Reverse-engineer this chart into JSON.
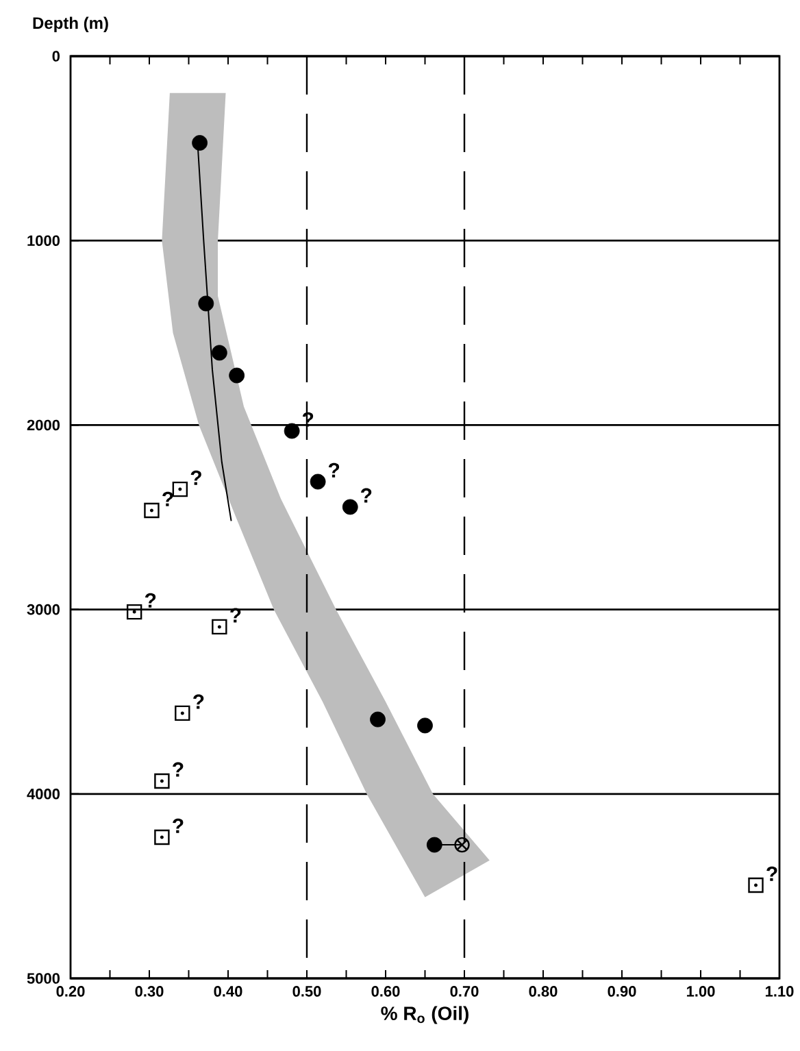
{
  "chart_data": {
    "type": "scatter",
    "xlabel": "% R$_{o}$ (Oil)",
    "ylabel": "Depth (m)",
    "xlim": [
      0.2,
      1.1
    ],
    "ylim": [
      5000,
      0
    ],
    "xticks": [
      {
        "value": 0.2,
        "label": "0.20"
      },
      {
        "value": 0.25,
        "label": null
      },
      {
        "value": 0.3,
        "label": "0.30"
      },
      {
        "value": 0.35,
        "label": null
      },
      {
        "value": 0.4,
        "label": "0.40"
      },
      {
        "value": 0.45,
        "label": null
      },
      {
        "value": 0.5,
        "label": "0.50"
      },
      {
        "value": 0.55,
        "label": null
      },
      {
        "value": 0.6,
        "label": "0.60"
      },
      {
        "value": 0.65,
        "label": null
      },
      {
        "value": 0.7,
        "label": "0.70"
      },
      {
        "value": 0.75,
        "label": null
      },
      {
        "value": 0.8,
        "label": "0.80"
      },
      {
        "value": 0.85,
        "label": null
      },
      {
        "value": 0.9,
        "label": "0.90"
      },
      {
        "value": 0.95,
        "label": null
      },
      {
        "value": 1.0,
        "label": "1.00"
      },
      {
        "value": 1.05,
        "label": null
      },
      {
        "value": 1.1,
        "label": "1.10"
      }
    ],
    "yticks": [
      0,
      1000,
      2000,
      3000,
      4000,
      5000
    ],
    "grid": "y",
    "ref_lines": [
      {
        "axis": "x",
        "value": 0.5,
        "line_style": "dashed"
      },
      {
        "axis": "x",
        "value": 0.7,
        "line_style": "dashed"
      }
    ],
    "series": [
      {
        "type": "area",
        "color": "#bdbdbd",
        "x": [
          0.326,
          0.316,
          0.33,
          0.363,
          0.41,
          0.458,
          0.52,
          0.576,
          0.65,
          0.732,
          0.66,
          0.6,
          0.537,
          0.467,
          0.42,
          0.387,
          0.387,
          0.397
        ],
        "values": [
          200,
          1000,
          1500,
          2000,
          2500,
          3000,
          3500,
          4000,
          4560,
          4360,
          4000,
          3500,
          3000,
          2400,
          1900,
          1300,
          1000,
          200
        ]
      },
      {
        "type": "line",
        "color": "#000000",
        "x": [
          0.361,
          0.369,
          0.38,
          0.392,
          0.404
        ],
        "values": [
          450,
          1000,
          1700,
          2200,
          2520
        ]
      },
      {
        "marker": "circle",
        "color": "#000000",
        "x": [
          0.364,
          0.372,
          0.389,
          0.411,
          0.481,
          0.514,
          0.555,
          0.59,
          0.65,
          0.662
        ],
        "values": [
          470,
          1341,
          1608,
          1731,
          2032,
          2307,
          2444,
          3596,
          3629,
          4276
        ]
      },
      {
        "type": "line",
        "color": "#000000",
        "x": [
          0.662,
          0.697
        ],
        "values": [
          4276,
          4276
        ]
      },
      {
        "marker": "cross",
        "color": "#000000",
        "x": [
          0.697
        ],
        "values": [
          4276
        ]
      },
      {
        "marker": "square",
        "color": "#000000",
        "x": [
          0.339,
          0.303,
          0.281,
          0.389,
          0.342,
          0.316,
          0.316
        ],
        "values": [
          2348,
          2463,
          3013,
          3094,
          3562,
          3930,
          4235
        ]
      },
      {
        "marker": "square",
        "color": "#000000",
        "x": [
          1.07
        ],
        "values": [
          4495
        ]
      }
    ],
    "annotations": [
      {
        "text": "?",
        "x": 0.481,
        "y": 2032
      },
      {
        "text": "?",
        "x": 0.514,
        "y": 2307
      },
      {
        "text": "?",
        "x": 0.555,
        "y": 2444
      },
      {
        "text": "?",
        "x": 0.339,
        "y": 2348
      },
      {
        "text": "?",
        "x": 0.303,
        "y": 2463
      },
      {
        "text": "?",
        "x": 0.281,
        "y": 3013
      },
      {
        "text": "?",
        "x": 0.389,
        "y": 3094
      },
      {
        "text": "?",
        "x": 0.342,
        "y": 3562
      },
      {
        "text": "?",
        "x": 0.316,
        "y": 3930
      },
      {
        "text": "?",
        "x": 0.316,
        "y": 4235
      },
      {
        "text": "?",
        "x": 1.07,
        "y": 4495
      }
    ]
  }
}
